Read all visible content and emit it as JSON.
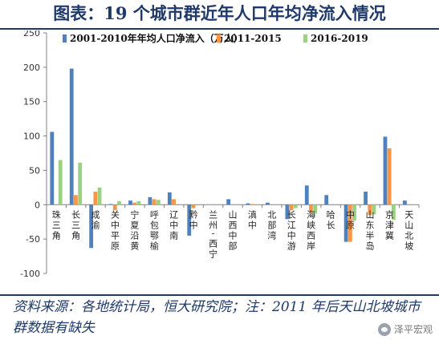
{
  "title": "图表：19 个城市群近年人口年均净流入情况",
  "source_note": "资料来源：各地统计局，恒大研究院；注：2011 年后天山北坡城市群数据有缺失",
  "watermark": "泽平宏观",
  "watermark_icon": "wechat-icon",
  "chart_data": {
    "type": "bar",
    "ylim": [
      -100,
      250
    ],
    "yticks": [
      -100,
      -50,
      0,
      50,
      100,
      150,
      200,
      250
    ],
    "grid": false,
    "legend_position": "top",
    "categories": [
      "珠三角",
      "长三角",
      "成渝",
      "关中平原",
      "宁夏沿黄",
      "呼包鄂榆",
      "辽中南",
      "黔中",
      "兰州-西宁",
      "山西中部",
      "滇中",
      "北部湾",
      "长江中游",
      "海峡西岸",
      "哈长",
      "中原",
      "山东半岛",
      "京津冀",
      "天山北坡"
    ],
    "series": [
      {
        "name": "2001-2010年年均人口净流入（万人）",
        "color": "#4f81bd",
        "values": [
          106,
          198,
          -63,
          1,
          6,
          11,
          18,
          -45,
          0,
          8,
          2,
          3,
          -21,
          28,
          14,
          -54,
          19,
          99,
          6
        ]
      },
      {
        "name": "2011-2015",
        "color": "#f79646",
        "values": [
          0,
          14,
          19,
          -8,
          3,
          8,
          8,
          -5,
          0,
          0,
          1,
          0,
          -8,
          -11,
          0,
          -54,
          -15,
          82,
          0
        ]
      },
      {
        "name": "2016-2019",
        "color": "#9bd27f",
        "values": [
          65,
          61,
          25,
          5,
          5,
          7,
          0,
          0,
          0,
          0,
          0,
          0,
          -5,
          -13,
          0,
          -23,
          -14,
          -22,
          0
        ]
      }
    ]
  }
}
